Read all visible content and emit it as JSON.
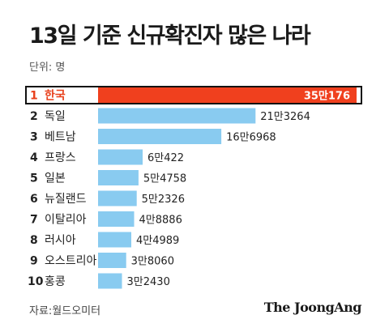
{
  "header": {
    "title": "13일 기준 신규확진자 많은 나라",
    "unit": "단위: 명"
  },
  "footer": {
    "source": "자료:월드오미터",
    "brand": "The JoongAng"
  },
  "colors": {
    "bar": "#89CBF0",
    "highlight_bar": "#F0401E",
    "highlight_text": "#E8401C",
    "text": "#222222"
  },
  "chart_data": {
    "type": "bar",
    "orientation": "horizontal",
    "highlight_index": 0,
    "ranks": [
      "1",
      "2",
      "3",
      "4",
      "5",
      "6",
      "7",
      "8",
      "9",
      "10"
    ],
    "categories": [
      "한국",
      "독일",
      "베트남",
      "프랑스",
      "일본",
      "뉴질랜드",
      "이탈리아",
      "러시아",
      "오스트리아",
      "홍콩"
    ],
    "values": [
      350176,
      213264,
      166968,
      60422,
      54758,
      52326,
      48886,
      44989,
      38060,
      32430
    ],
    "value_labels": [
      "35만176",
      "21만3264",
      "16만6968",
      "6만422",
      "5만4758",
      "5만2326",
      "4만8886",
      "4만4989",
      "3만8060",
      "3만2430"
    ]
  }
}
